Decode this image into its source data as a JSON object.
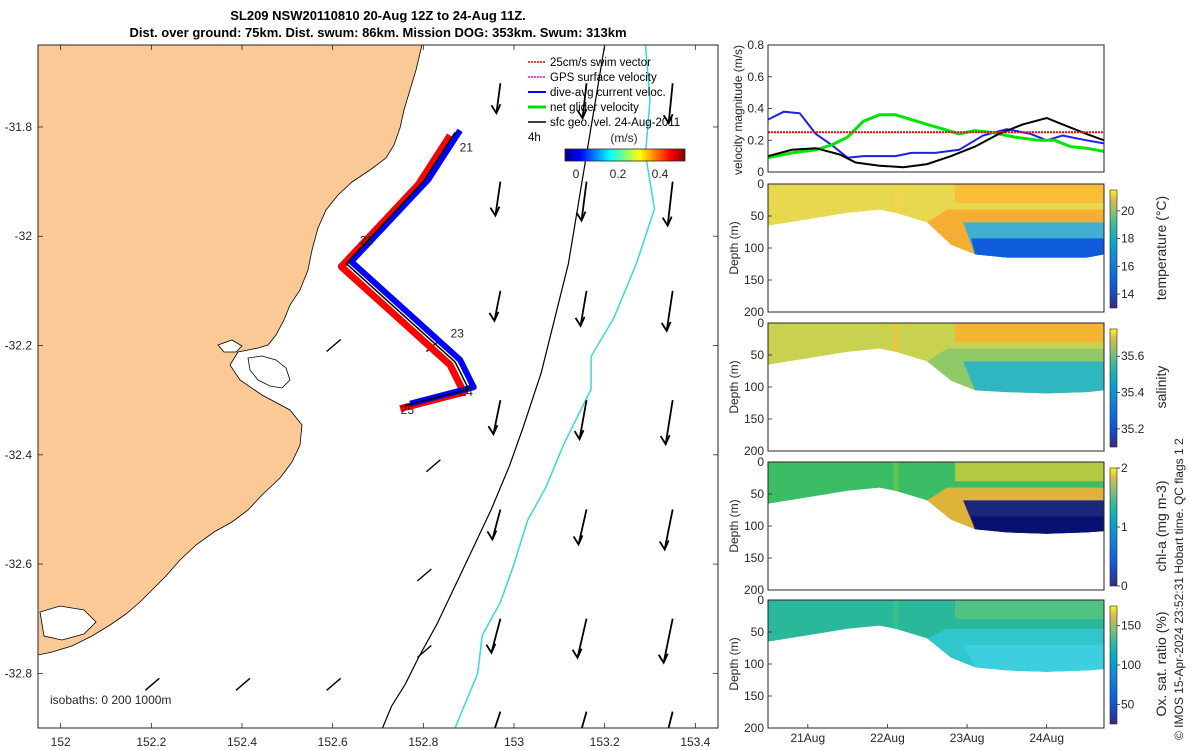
{
  "title": {
    "line1": "SL209 NSW20110810 20-Aug 12Z to 24-Aug 11Z.",
    "line2": "Dist. over ground: 75km. Dist. swum: 86km. Mission DOG: 353km. Swum: 313km"
  },
  "credit": "© IMOS 15-Apr-2024 23:52:31 Hobart time. QC flags 1  2",
  "chart_data": [
    {
      "id": "map",
      "type": "map",
      "xlim": [
        151.95,
        153.45
      ],
      "ylim": [
        -32.9,
        -31.65
      ],
      "xticks": [
        152,
        152.2,
        152.4,
        152.6,
        152.8,
        153,
        153.2,
        153.4
      ],
      "yticks": [
        -31.8,
        -32,
        -32.2,
        -32.4,
        -32.6,
        -32.8
      ],
      "xtick_labels": [
        "152",
        "152.2",
        "152.4",
        "152.6",
        "152.8",
        "153",
        "153.2",
        "153.4"
      ],
      "ytick_labels": [
        "-31.8",
        "-32",
        "-32.2",
        "-32.4",
        "-32.6",
        "-32.8"
      ],
      "isobaths_note": "isobaths: 0   200  1000m",
      "legend": [
        {
          "label": "25cm/s swim vector",
          "color": "#ff0000"
        },
        {
          "label": "GPS surface velocity",
          "color": "#ff00ff"
        },
        {
          "label": "dive-avg current veloc.",
          "color": "#0000ff"
        },
        {
          "label": "net glider velocity",
          "color": "#00dd00"
        },
        {
          "label": "sfc geo. vel. 24-Aug-2011",
          "color": "#000000"
        }
      ],
      "colorbar": {
        "title": "(m/s)",
        "extra_label": "4h",
        "ticks": [
          "0",
          "0.2",
          "0.4"
        ],
        "range": [
          -0.05,
          0.55
        ]
      },
      "glider_track": {
        "lon": [
          152.87,
          152.8,
          152.63,
          152.87,
          152.9,
          152.76
        ],
        "lat": [
          -31.81,
          -31.9,
          -32.05,
          -32.23,
          -32.28,
          -32.31
        ]
      },
      "day_labels": [
        {
          "text": "21",
          "lon": 152.88,
          "lat": -31.845
        },
        {
          "text": "22",
          "lon": 152.66,
          "lat": -32.015
        },
        {
          "text": "23",
          "lon": 152.86,
          "lat": -32.185
        },
        {
          "text": "24",
          "lon": 152.88,
          "lat": -32.292
        },
        {
          "text": "25",
          "lon": 152.75,
          "lat": -32.325
        }
      ],
      "isobath_200m": {
        "lon": [
          153.29,
          153.3,
          153.29,
          153.31,
          153.27,
          153.22,
          153.17,
          153.17,
          153.11,
          153.07,
          153.03,
          153.0,
          152.97,
          152.93,
          152.92,
          152.89,
          152.87
        ],
        "lat": [
          -31.65,
          -31.75,
          -31.85,
          -31.95,
          -32.05,
          -32.15,
          -32.22,
          -32.28,
          -32.38,
          -32.46,
          -32.52,
          -32.6,
          -32.67,
          -32.73,
          -32.8,
          -32.86,
          -32.9
        ]
      },
      "isobath_1000m": {
        "lon": [
          153.2,
          153.17,
          153.14,
          153.12,
          153.09,
          153.06,
          153.02,
          152.99,
          152.95,
          152.91,
          152.87,
          152.83,
          152.79,
          152.76,
          152.73,
          152.71
        ],
        "lat": [
          -31.65,
          -31.8,
          -31.95,
          -32.05,
          -32.15,
          -32.25,
          -32.35,
          -32.42,
          -32.5,
          -32.57,
          -32.64,
          -32.71,
          -32.77,
          -32.82,
          -32.86,
          -32.9
        ]
      }
    },
    {
      "id": "velocity",
      "type": "line",
      "ylabel": "velocity magnitude (m/s)",
      "ylim": [
        0,
        0.8
      ],
      "yticks": [
        "0",
        "0.2",
        "0.4",
        "0.6",
        "0.8"
      ],
      "xlim": [
        20.5,
        24.72
      ],
      "series": [
        {
          "name": "dive-avg current",
          "color": "#1f1fe6",
          "x": [
            20.5,
            20.7,
            20.9,
            21.1,
            21.3,
            21.5,
            21.7,
            21.9,
            22.1,
            22.3,
            22.6,
            22.9,
            23.2,
            23.5,
            23.8,
            24.0,
            24.2,
            24.5,
            24.72
          ],
          "y": [
            0.33,
            0.38,
            0.37,
            0.24,
            0.17,
            0.09,
            0.1,
            0.1,
            0.1,
            0.12,
            0.12,
            0.14,
            0.23,
            0.27,
            0.24,
            0.2,
            0.23,
            0.2,
            0.18
          ]
        },
        {
          "name": "net glider",
          "color": "#00e600",
          "x": [
            20.5,
            20.8,
            21.1,
            21.3,
            21.5,
            21.7,
            21.9,
            22.1,
            22.3,
            22.5,
            22.7,
            22.9,
            23.1,
            23.3,
            23.6,
            23.9,
            24.1,
            24.3,
            24.5,
            24.72
          ],
          "y": [
            0.09,
            0.12,
            0.14,
            0.17,
            0.22,
            0.32,
            0.36,
            0.36,
            0.33,
            0.3,
            0.27,
            0.24,
            0.26,
            0.25,
            0.22,
            0.2,
            0.2,
            0.16,
            0.15,
            0.13
          ]
        },
        {
          "name": "sfc geo vel",
          "color": "#000000",
          "x": [
            20.5,
            20.8,
            21.1,
            21.4,
            21.6,
            21.9,
            22.2,
            22.5,
            22.8,
            23.1,
            23.4,
            23.7,
            24.0,
            24.2,
            24.5,
            24.72
          ],
          "y": [
            0.1,
            0.14,
            0.15,
            0.11,
            0.06,
            0.04,
            0.03,
            0.05,
            0.1,
            0.16,
            0.24,
            0.3,
            0.34,
            0.3,
            0.24,
            0.2
          ]
        },
        {
          "name": "swim vector",
          "color": "#ff0000",
          "x": [
            20.5,
            24.72
          ],
          "y": [
            0.25,
            0.25
          ]
        }
      ]
    },
    {
      "id": "temperature",
      "type": "heatmap",
      "ylabel": "Depth (m)",
      "cbar_label": "temperature (°C)",
      "ylim": [
        200,
        0
      ],
      "yticks": [
        "0",
        "50",
        "100",
        "150",
        "200"
      ],
      "clim": [
        13,
        21.5
      ],
      "cticks": [
        "14",
        "16",
        "18",
        "20"
      ],
      "cmap": "parula",
      "bottom_depth": {
        "x": [
          20.5,
          21.0,
          21.5,
          21.9,
          22.1,
          22.5,
          22.8,
          23.1,
          23.5,
          24.0,
          24.5,
          24.72
        ],
        "y": [
          65,
          55,
          45,
          40,
          45,
          60,
          95,
          110,
          115,
          115,
          115,
          110
        ]
      },
      "surface_value": 19.5,
      "deep_value": 14.0
    },
    {
      "id": "salinity",
      "type": "heatmap",
      "ylabel": "Depth (m)",
      "cbar_label": "salinity",
      "ylim": [
        200,
        0
      ],
      "yticks": [
        "0",
        "50",
        "100",
        "150",
        "200"
      ],
      "clim": [
        35.1,
        35.75
      ],
      "cticks": [
        "35.2",
        "35.4",
        "35.6"
      ],
      "cmap": "parula",
      "bottom_depth": {
        "x": [
          20.5,
          21.0,
          21.5,
          21.9,
          22.1,
          22.5,
          22.8,
          23.1,
          23.5,
          24.0,
          24.5,
          24.72
        ],
        "y": [
          65,
          55,
          45,
          40,
          45,
          60,
          90,
          105,
          108,
          110,
          108,
          105
        ]
      },
      "surface_value": 35.52,
      "deep_value": 35.33
    },
    {
      "id": "chla",
      "type": "heatmap",
      "ylabel": "Depth (m)",
      "cbar_label": "chl-a (mg m-3)",
      "ylim": [
        200,
        0
      ],
      "yticks": [
        "0",
        "50",
        "100",
        "150",
        "200"
      ],
      "clim": [
        0,
        2
      ],
      "cticks": [
        "0",
        "1",
        "2"
      ],
      "cmap": "parula",
      "bottom_depth": {
        "x": [
          20.5,
          21.0,
          21.5,
          21.9,
          22.1,
          22.5,
          22.8,
          23.1,
          23.5,
          24.0,
          24.5,
          24.72
        ],
        "y": [
          65,
          55,
          45,
          40,
          45,
          60,
          90,
          105,
          110,
          112,
          110,
          108
        ]
      },
      "surface_value": 1.1,
      "deep_value": 0.05
    },
    {
      "id": "oxygen",
      "type": "heatmap",
      "ylabel": "Depth (m)",
      "cbar_label": "Ox. sat. ratio (%)",
      "ylim": [
        200,
        0
      ],
      "yticks": [
        "0",
        "50",
        "100",
        "150",
        "200"
      ],
      "clim": [
        25,
        175
      ],
      "cticks": [
        "50",
        "100",
        "150"
      ],
      "cmap": "parula",
      "bottom_depth": {
        "x": [
          20.5,
          21.0,
          21.5,
          21.9,
          22.1,
          22.5,
          22.8,
          23.1,
          23.5,
          24.0,
          24.5,
          24.72
        ],
        "y": [
          65,
          55,
          45,
          40,
          45,
          60,
          90,
          105,
          110,
          112,
          110,
          108
        ]
      },
      "surface_value": 115,
      "deep_value": 95
    }
  ],
  "time_axis": {
    "ticks": [
      21,
      22,
      23,
      24
    ],
    "labels": [
      "21Aug",
      "22Aug",
      "23Aug",
      "24Aug"
    ]
  }
}
